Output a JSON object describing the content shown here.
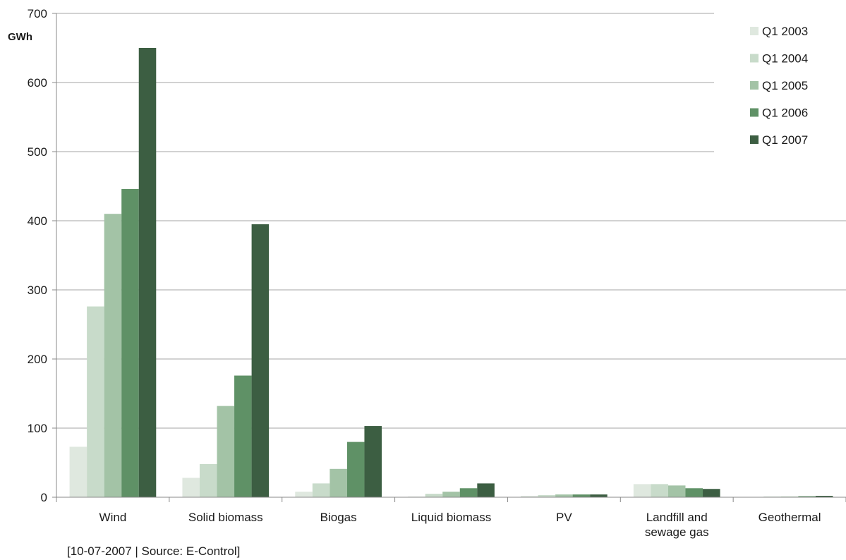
{
  "chart_data": {
    "type": "bar",
    "title": "",
    "ylabel": "GWh",
    "xlabel": "",
    "ylim": [
      0,
      700
    ],
    "yticks": [
      0,
      100,
      200,
      300,
      400,
      500,
      600,
      700
    ],
    "grid": true,
    "legend_position": "top-right",
    "categories": [
      "Wind",
      "Solid biomass",
      "Biogas",
      "Liquid biomass",
      "PV",
      "Landfill and sewage gas",
      "Geothermal"
    ],
    "category_lines": [
      [
        "Wind"
      ],
      [
        "Solid biomass"
      ],
      [
        "Biogas"
      ],
      [
        "Liquid biomass"
      ],
      [
        "PV"
      ],
      [
        "Landfill and",
        "sewage gas"
      ],
      [
        "Geothermal"
      ]
    ],
    "series": [
      {
        "name": "Q1 2003",
        "color": "#dfe8df",
        "values": [
          73,
          28,
          8,
          1,
          2,
          19,
          0.5
        ]
      },
      {
        "name": "Q1 2004",
        "color": "#c8dbca",
        "values": [
          276,
          48,
          20,
          5,
          3,
          19,
          1
        ]
      },
      {
        "name": "Q1 2005",
        "color": "#a3c3a6",
        "values": [
          410,
          132,
          41,
          8,
          4,
          17,
          1
        ]
      },
      {
        "name": "Q1 2006",
        "color": "#5f9166",
        "values": [
          446,
          176,
          80,
          13,
          4,
          13,
          1.5
        ]
      },
      {
        "name": "Q1 2007",
        "color": "#3c5e42",
        "values": [
          650,
          395,
          103,
          20,
          4,
          12,
          2
        ]
      }
    ],
    "source_note": "[10-07-2007 | Source: E-Control]"
  }
}
